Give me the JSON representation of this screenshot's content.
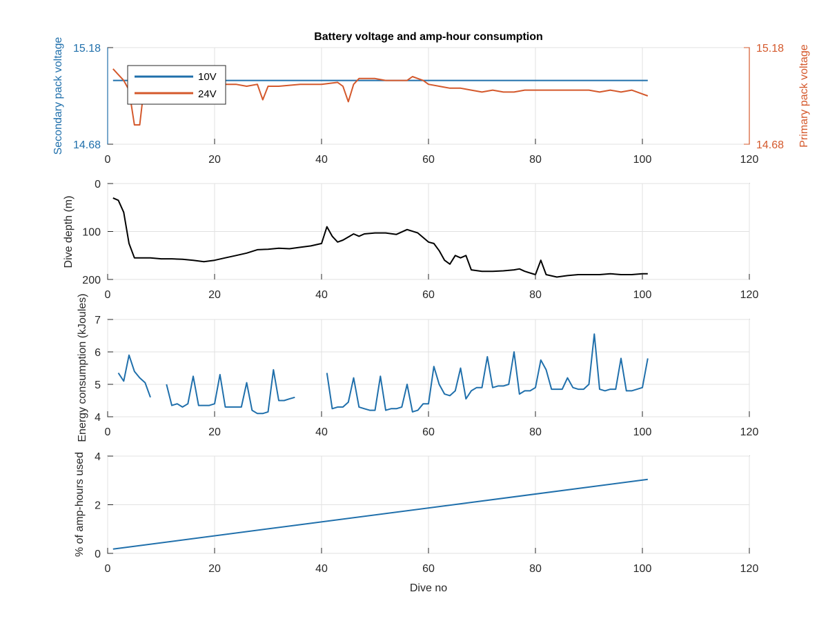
{
  "colors": {
    "blue": "#1f6fab",
    "orange": "#d4582b",
    "black": "#000000",
    "axis": "#262626",
    "grid": "#e1e1e1"
  },
  "chart_data": [
    {
      "type": "line",
      "title": "Battery voltage and amp-hour consumption",
      "xlabel": "",
      "ylabel": "Secondary pack voltage",
      "ylabel_right": "Primary pack voltage",
      "xlim": [
        0,
        120
      ],
      "ylim": [
        14.68,
        15.18
      ],
      "ylim_right": [
        14.68,
        15.18
      ],
      "xticks": [
        0,
        20,
        40,
        60,
        80,
        100,
        120
      ],
      "yticks": [
        "14.68",
        "15.18"
      ],
      "yticks_right": [
        "14.68",
        "15.18"
      ],
      "grid": true,
      "legend_position": "top-left",
      "series": [
        {
          "name": "10V",
          "axis": "left",
          "color": "blue",
          "x": [
            1,
            101
          ],
          "y": [
            15.01,
            15.01
          ]
        },
        {
          "name": "24V",
          "axis": "right",
          "color": "orange",
          "x": [
            1,
            2,
            3,
            4,
            5,
            5.5,
            6,
            6.5,
            7,
            8,
            10,
            13,
            16,
            20,
            24,
            26,
            28,
            29,
            30,
            32,
            36,
            40,
            43,
            44,
            45,
            46,
            47,
            48,
            50,
            52,
            54,
            56,
            57,
            58,
            59,
            60,
            62,
            64,
            66,
            68,
            70,
            72,
            74,
            76,
            78,
            80,
            82,
            84,
            86,
            88,
            90,
            92,
            94,
            96,
            98,
            100,
            101
          ],
          "y": [
            15.07,
            15.04,
            15.01,
            14.96,
            14.78,
            14.78,
            14.78,
            14.9,
            14.97,
            14.98,
            14.98,
            14.98,
            14.98,
            14.99,
            14.99,
            14.98,
            14.99,
            14.91,
            14.98,
            14.98,
            14.99,
            14.99,
            15.0,
            14.98,
            14.9,
            14.99,
            15.02,
            15.02,
            15.02,
            15.01,
            15.01,
            15.01,
            15.03,
            15.02,
            15.01,
            14.99,
            14.98,
            14.97,
            14.97,
            14.96,
            14.95,
            14.96,
            14.95,
            14.95,
            14.96,
            14.96,
            14.96,
            14.96,
            14.96,
            14.96,
            14.96,
            14.95,
            14.96,
            14.95,
            14.96,
            14.94,
            14.93
          ]
        }
      ]
    },
    {
      "type": "line",
      "xlabel": "",
      "ylabel": "Dive depth (m)",
      "xlim": [
        0,
        120
      ],
      "ylim": [
        0,
        200
      ],
      "y_reversed": true,
      "xticks": [
        0,
        20,
        40,
        60,
        80,
        100,
        120
      ],
      "yticks": [
        0,
        100,
        200
      ],
      "grid": true,
      "series": [
        {
          "color": "black",
          "x": [
            1,
            2,
            3,
            4,
            5,
            6,
            8,
            10,
            12,
            14,
            16,
            18,
            20,
            22,
            24,
            26,
            28,
            30,
            32,
            34,
            36,
            38,
            40,
            41,
            42,
            43,
            44,
            46,
            47,
            48,
            50,
            52,
            54,
            56,
            58,
            60,
            61,
            62,
            63,
            64,
            65,
            66,
            67,
            68,
            70,
            72,
            74,
            76,
            77,
            78,
            80,
            81,
            82,
            84,
            86,
            88,
            90,
            92,
            94,
            96,
            98,
            100,
            101
          ],
          "y": [
            30,
            35,
            60,
            125,
            155,
            155,
            155,
            157,
            157,
            158,
            160,
            163,
            160,
            155,
            150,
            145,
            138,
            137,
            135,
            136,
            133,
            130,
            125,
            90,
            110,
            122,
            118,
            105,
            110,
            105,
            103,
            103,
            106,
            96,
            103,
            122,
            125,
            140,
            160,
            168,
            150,
            155,
            150,
            180,
            183,
            183,
            182,
            180,
            178,
            183,
            190,
            160,
            190,
            195,
            192,
            190,
            190,
            190,
            188,
            190,
            190,
            188,
            188
          ]
        }
      ]
    },
    {
      "type": "line",
      "xlabel": "",
      "ylabel": "Energy consumption (kJoules)",
      "xlim": [
        0,
        120
      ],
      "ylim": [
        4,
        7
      ],
      "xticks": [
        0,
        20,
        40,
        60,
        80,
        100,
        120
      ],
      "yticks": [
        4,
        5,
        6,
        7
      ],
      "grid": true,
      "series": [
        {
          "color": "blue",
          "segments": [
            {
              "x": [
                2,
                3,
                4,
                5,
                6,
                7,
                8
              ],
              "y": [
                5.35,
                5.1,
                5.9,
                5.4,
                5.2,
                5.05,
                4.6
              ]
            },
            {
              "x": [
                11,
                12,
                13,
                14,
                15,
                16,
                17,
                18,
                19,
                20,
                21,
                22,
                23,
                24,
                25,
                26,
                27,
                28,
                29,
                30,
                31,
                32,
                33,
                34,
                35
              ],
              "y": [
                5.0,
                4.35,
                4.4,
                4.3,
                4.4,
                5.25,
                4.35,
                4.35,
                4.35,
                4.4,
                5.3,
                4.3,
                4.3,
                4.3,
                4.3,
                5.05,
                4.2,
                4.1,
                4.1,
                4.15,
                5.45,
                4.5,
                4.5,
                4.55,
                4.6
              ]
            },
            {
              "x": [
                41,
                42,
                43,
                44,
                45,
                46,
                47,
                48,
                49,
                50,
                51,
                52,
                53,
                54,
                55,
                56,
                57,
                58,
                59,
                60,
                61,
                62,
                63,
                64,
                65,
                66,
                67,
                68,
                69,
                70,
                71,
                72,
                73,
                74,
                75,
                76,
                77,
                78,
                79,
                80,
                81,
                82,
                83,
                84,
                85,
                86,
                87,
                88,
                89,
                90,
                91,
                92,
                93,
                94,
                95,
                96,
                97,
                98,
                99,
                100,
                101
              ],
              "y": [
                5.35,
                4.25,
                4.3,
                4.3,
                4.45,
                5.2,
                4.3,
                4.25,
                4.2,
                4.2,
                5.25,
                4.2,
                4.25,
                4.25,
                4.3,
                5.0,
                4.15,
                4.2,
                4.4,
                4.4,
                5.55,
                5.0,
                4.7,
                4.65,
                4.8,
                5.5,
                4.55,
                4.8,
                4.9,
                4.9,
                5.85,
                4.9,
                4.95,
                4.95,
                5.0,
                6.0,
                4.7,
                4.8,
                4.8,
                4.9,
                5.75,
                5.45,
                4.85,
                4.85,
                4.85,
                5.2,
                4.9,
                4.85,
                4.85,
                5.0,
                6.55,
                4.85,
                4.8,
                4.85,
                4.85,
                5.8,
                4.8,
                4.8,
                4.85,
                4.9,
                5.8
              ]
            }
          ]
        }
      ]
    },
    {
      "type": "line",
      "xlabel": "Dive no",
      "ylabel": "% of amp-hours used",
      "xlim": [
        0,
        120
      ],
      "ylim": [
        0,
        4
      ],
      "xticks": [
        0,
        20,
        40,
        60,
        80,
        100,
        120
      ],
      "yticks": [
        0,
        2,
        4
      ],
      "grid": true,
      "series": [
        {
          "color": "blue",
          "x": [
            1,
            101
          ],
          "y": [
            0.18,
            3.04
          ]
        }
      ]
    }
  ]
}
